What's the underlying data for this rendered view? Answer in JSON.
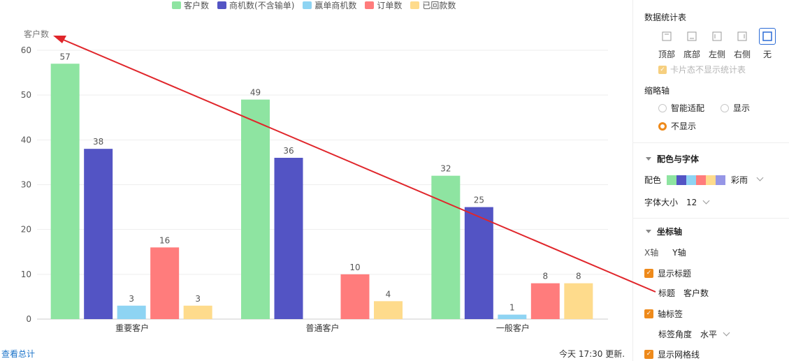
{
  "chart_data": {
    "type": "bar",
    "title": "",
    "ylabel": "客户数",
    "xlabel": "",
    "ylim": [
      0,
      60
    ],
    "yticks": [
      0,
      10,
      20,
      30,
      40,
      50,
      60
    ],
    "categories": [
      "重要客户",
      "普通客户",
      "一般客户"
    ],
    "series": [
      {
        "name": "客户数",
        "color": "#8ee4a1",
        "values": [
          57,
          49,
          32
        ]
      },
      {
        "name": "商机数(不含输单)",
        "color": "#5354c4",
        "values": [
          38,
          36,
          25
        ]
      },
      {
        "name": "赢单商机数",
        "color": "#8ed4f3",
        "values": [
          3,
          null,
          1
        ]
      },
      {
        "name": "订单数",
        "color": "#ff7c7c",
        "values": [
          16,
          10,
          8
        ]
      },
      {
        "name": "已回款数",
        "color": "#fedb8c",
        "values": [
          3,
          4,
          8
        ]
      }
    ],
    "grid": true,
    "legend_position": "top"
  },
  "annotation": {
    "color": "#e0262b",
    "note_arrow": "red arrow from 标题 field to Y-axis title"
  },
  "footer": {
    "view_total": "查看总计",
    "updated": "今天 17:30 更新."
  },
  "panel": {
    "stats_table": {
      "title": "数据统计表",
      "options": [
        {
          "label": "顶部",
          "icon": "layout-top-icon"
        },
        {
          "label": "底部",
          "icon": "layout-bottom-icon"
        },
        {
          "label": "左侧",
          "icon": "layout-left-icon"
        },
        {
          "label": "右侧",
          "icon": "layout-right-icon"
        },
        {
          "label": "无",
          "icon": "layout-none-icon",
          "active": true
        }
      ],
      "card_hide_label": "卡片态不显示统计表"
    },
    "thumbnail_axis": {
      "title": "缩略轴",
      "options": [
        "智能适配",
        "显示",
        "不显示"
      ],
      "selected": "不显示"
    },
    "color_font": {
      "title": "配色与字体",
      "palette_label": "配色",
      "palette_name": "彩雨",
      "palette_colors": [
        "#8ee4a1",
        "#5354c4",
        "#8ed4f3",
        "#ff7c7c",
        "#fedb8c",
        "#9696e6"
      ],
      "font_size_label": "字体大小",
      "font_size": "12"
    },
    "axis": {
      "title": "坐标轴",
      "tabs": [
        "X轴",
        "Y轴"
      ],
      "show_title_label": "显示标题",
      "title_label": "标题",
      "title_value": "客户数",
      "axis_label_label": "轴标签",
      "label_angle_label": "标签角度",
      "label_angle_value": "水平",
      "show_grid_label": "显示网格线"
    }
  }
}
